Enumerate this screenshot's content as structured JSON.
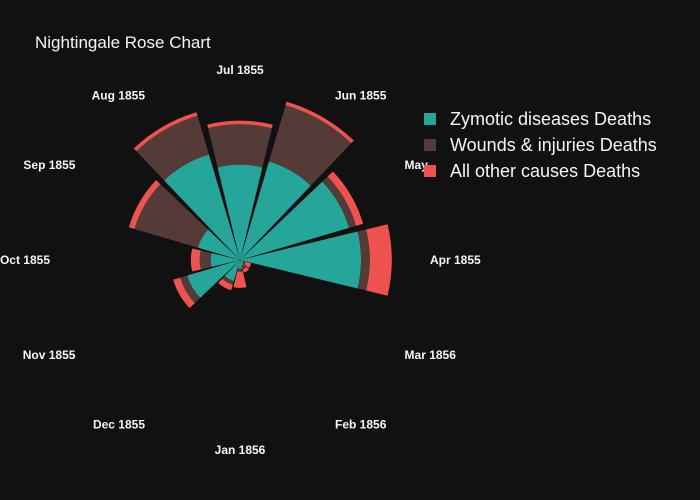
{
  "chart_data": {
    "type": "barpolar",
    "title": "Nightingale Rose Chart",
    "background": "#111111",
    "text_color": "#f2f5fa",
    "direction": "counterclockwise",
    "legend_placement": "top-right",
    "grid": false,
    "categories": [
      "Apr 1855",
      "May",
      "Jun 1855",
      "Jul 1855",
      "Aug 1855",
      "Sep 1855",
      "Oct 1855",
      "Nov 1855",
      "Dec 1855",
      "Jan 1856",
      "Feb 1856",
      "Mar 1856"
    ],
    "series": [
      {
        "name": "Zymotic diseases Deaths",
        "color": "#26a69a",
        "values": [
          165,
          155,
          140,
          130,
          150,
          60,
          40,
          75,
          30,
          12,
          8,
          5
        ]
      },
      {
        "name": "Wounds & injuries Deaths",
        "color": "#543b37",
        "values": [
          12,
          10,
          80,
          55,
          55,
          90,
          15,
          10,
          5,
          4,
          5,
          3
        ]
      },
      {
        "name": "All other causes Deaths",
        "color": "#ef5350",
        "values": [
          30,
          10,
          5,
          5,
          5,
          8,
          12,
          10,
          8,
          22,
          5,
          8
        ]
      }
    ]
  }
}
